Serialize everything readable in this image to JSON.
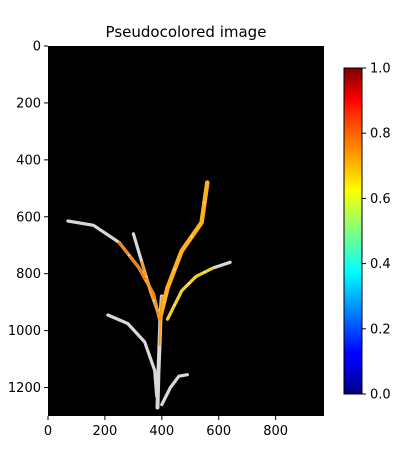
{
  "chart_data": {
    "type": "heatmap",
    "title": "Pseudocolored image",
    "xlabel": "",
    "ylabel": "",
    "xlim": [
      0,
      970
    ],
    "ylim": [
      1300,
      0
    ],
    "x_ticks": [
      0,
      200,
      400,
      600,
      800
    ],
    "y_ticks": [
      0,
      200,
      400,
      600,
      800,
      1000,
      1200
    ],
    "background_color": "#000000",
    "colormap": "jet",
    "colorbar": {
      "range": [
        0.0,
        1.0
      ],
      "ticks": [
        "0.0",
        "0.2",
        "0.4",
        "0.6",
        "0.8",
        "1.0"
      ]
    },
    "plant": {
      "outline_color": "#d8d8d8",
      "fill_colors": [
        "#ff7a00",
        "#ff9a10",
        "#ffb020",
        "#ffd000"
      ],
      "stem": [
        [
          385,
          1270
        ],
        [
          388,
          1150
        ],
        [
          392,
          1050
        ],
        [
          395,
          960
        ],
        [
          400,
          880
        ]
      ],
      "leaves": [
        {
          "name": "left-long-leaf",
          "path": [
            [
              70,
              615
            ],
            [
              160,
              630
            ],
            [
              250,
              690
            ],
            [
              320,
              780
            ],
            [
              370,
              870
            ],
            [
              392,
              960
            ]
          ],
          "colored": "partial"
        },
        {
          "name": "left-inner-leaf",
          "path": [
            [
              300,
              660
            ],
            [
              330,
              760
            ],
            [
              360,
              860
            ],
            [
              385,
              930
            ]
          ],
          "colored": "partial"
        },
        {
          "name": "upper-right-leaf",
          "path": [
            [
              560,
              480
            ],
            [
              540,
              620
            ],
            [
              470,
              720
            ],
            [
              420,
              850
            ],
            [
              395,
              950
            ]
          ],
          "colored": "full"
        },
        {
          "name": "right-leaf",
          "path": [
            [
              640,
              760
            ],
            [
              580,
              780
            ],
            [
              520,
              810
            ],
            [
              470,
              860
            ],
            [
              420,
              960
            ]
          ],
          "colored": "partial"
        },
        {
          "name": "lower-left-leaf",
          "path": [
            [
              210,
              945
            ],
            [
              280,
              975
            ],
            [
              340,
              1040
            ],
            [
              375,
              1140
            ],
            [
              382,
              1230
            ]
          ],
          "colored": "none"
        },
        {
          "name": "lower-right-shoot",
          "path": [
            [
              400,
              1260
            ],
            [
              430,
              1200
            ],
            [
              460,
              1160
            ],
            [
              490,
              1155
            ]
          ],
          "colored": "none"
        }
      ]
    }
  },
  "icons": {
    "colorbar": "colorbar-gradient"
  }
}
